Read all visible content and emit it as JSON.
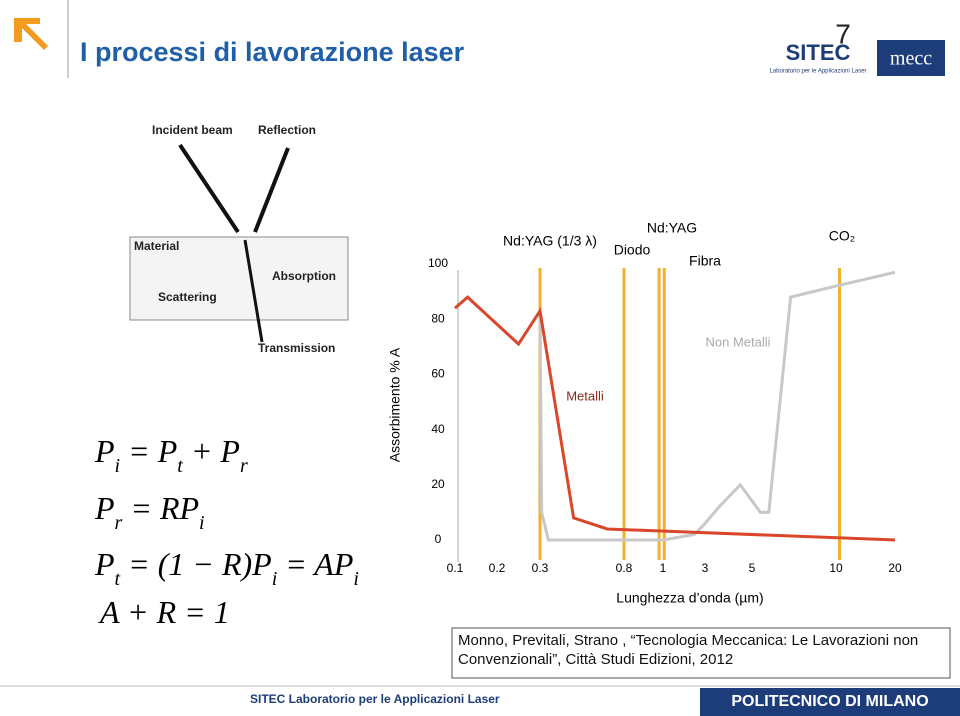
{
  "header": {
    "title": "I processi di lavorazione laser",
    "page": "7",
    "logo1": "SITEC",
    "logo1_sub": "Laboratorio per le Applicazioni Laser",
    "logo2": "mecc"
  },
  "figure": {
    "labels": [
      "Incident beam",
      "Reflection",
      "Material",
      "Absorption",
      "Scattering",
      "Transmission"
    ]
  },
  "equations": [
    [
      "P",
      "i",
      " = P",
      "t",
      " + P",
      "r"
    ],
    [
      "P",
      "r",
      " = RP",
      "i"
    ],
    [
      "P",
      "t",
      " = (1 − R)P",
      "i",
      " = AP",
      "i"
    ],
    [
      "A + R = 1"
    ]
  ],
  "chart_data": {
    "type": "line",
    "ylabel": "Assorbimento % A",
    "xlabel": "Lunghezza d’onda (µm)",
    "ylim": [
      0,
      100
    ],
    "yticks": [
      0,
      20,
      40,
      60,
      80,
      100
    ],
    "xlim": [
      0.1,
      20
    ],
    "xticks": [
      0.1,
      0.2,
      0.3,
      0.8,
      1,
      3,
      5,
      10,
      20
    ],
    "series": [
      {
        "name": "Metalli",
        "color": "#d9472b",
        "x": [
          0.1,
          0.13,
          0.25,
          0.3,
          0.5,
          0.7,
          20
        ],
        "values": [
          84,
          88,
          71,
          83,
          8,
          4,
          0
        ]
      },
      {
        "name": "Non Metalli",
        "color": "#c8c8c8",
        "x": [
          0.3,
          0.31,
          0.35,
          1,
          2.5,
          3,
          3.6,
          4.5,
          5.5,
          6,
          7.3,
          10,
          20
        ],
        "values": [
          83,
          10,
          0,
          0,
          2,
          6,
          12,
          20,
          10,
          10,
          88,
          92,
          97
        ]
      }
    ],
    "lasers": {
      "color": "#f0b030",
      "names": [
        "Nd:YAG (1/3 λ)",
        "Diodo",
        "Nd:YAG",
        "Fibra",
        "CO₂"
      ],
      "x": [
        0.3,
        0.8,
        0.98,
        1.06,
        10.6
      ]
    }
  },
  "citation": "Monno, Previtali, Strano , “Tecnologia Meccanica: Le Lavorazioni non Convenzionali”, Città Studi Edizioni, 2012",
  "footer": {
    "left": "SITEC  Laboratorio per le Applicazioni Laser",
    "right": "POLITECNICO DI MILANO"
  }
}
